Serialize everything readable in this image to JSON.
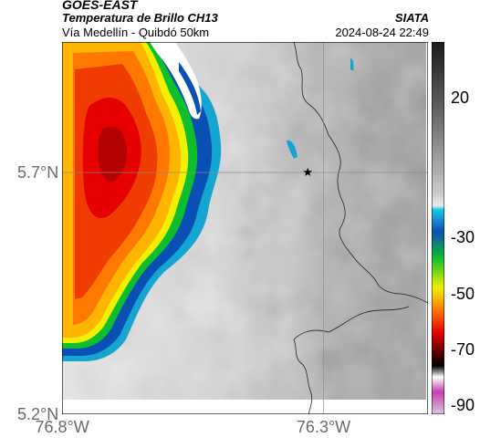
{
  "header": {
    "satellite": "GOES-EAST",
    "product": "Temperatura de Brillo CH13",
    "route": "Vía Medellín - Quibdó 50km",
    "org": "SIATA",
    "datetime": "2024-08-24 22:49"
  },
  "axes": {
    "x_ticks": [
      {
        "label": "76.8°W",
        "lon": -76.8
      },
      {
        "label": "76.3°W",
        "lon": -76.3
      }
    ],
    "y_ticks": [
      {
        "label": "5.7°N",
        "lat": 5.7
      },
      {
        "label": "5.2°N",
        "lat": 5.2
      }
    ],
    "lon_range": [
      -76.8,
      -76.1
    ],
    "lat_range": [
      5.2,
      5.97
    ]
  },
  "colorbar": {
    "ticks": [
      {
        "label": "20",
        "value": 20
      },
      {
        "label": "-30",
        "value": -30
      },
      {
        "label": "-50",
        "value": -50
      },
      {
        "label": "-70",
        "value": -70
      },
      {
        "label": "-90",
        "value": -90
      }
    ],
    "range": [
      -93,
      40
    ],
    "colors": {
      "warm_black": "#1a1a1a",
      "warm_gray": "#9a9a9a",
      "cyan": "#1ec8e6",
      "blue": "#0a50b4",
      "green": "#0fbe2d",
      "yellow": "#f0f000",
      "orange": "#ff7800",
      "red": "#e60000",
      "dark_red": "#4b0000",
      "magenta": "#c83cb4"
    }
  },
  "marker": {
    "icon": "star-icon",
    "lon": -76.33,
    "lat": 5.7
  }
}
